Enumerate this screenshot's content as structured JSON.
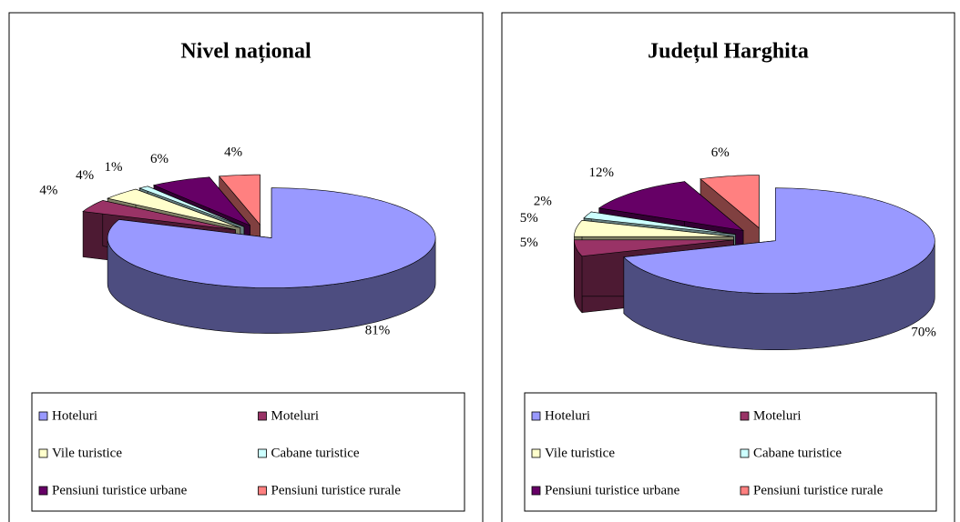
{
  "chart_data": [
    {
      "type": "pie",
      "title": "Nivel național",
      "categories": [
        "Hoteluri",
        "Moteluri",
        "Vile turistice",
        "Cabane turistice",
        "Pensiuni turistice urbane",
        "Pensiuni turistice rurale"
      ],
      "values": [
        81,
        4,
        4,
        1,
        6,
        4
      ],
      "value_labels": [
        "81%",
        "4%",
        "4%",
        "1%",
        "6%",
        "4%"
      ],
      "colors": [
        "#9999ff",
        "#993366",
        "#ffffcc",
        "#ccffff",
        "#660066",
        "#ff8080"
      ]
    },
    {
      "type": "pie",
      "title": "Județul Harghita",
      "categories": [
        "Hoteluri",
        "Moteluri",
        "Vile turistice",
        "Cabane turistice",
        "Pensiuni turistice urbane",
        "Pensiuni turistice rurale"
      ],
      "values": [
        70,
        5,
        5,
        2,
        12,
        6
      ],
      "value_labels": [
        "70%",
        "5%",
        "5%",
        "2%",
        "12%",
        "6%"
      ],
      "colors": [
        "#9999ff",
        "#993366",
        "#ffffcc",
        "#ccffff",
        "#660066",
        "#ff8080"
      ]
    }
  ]
}
